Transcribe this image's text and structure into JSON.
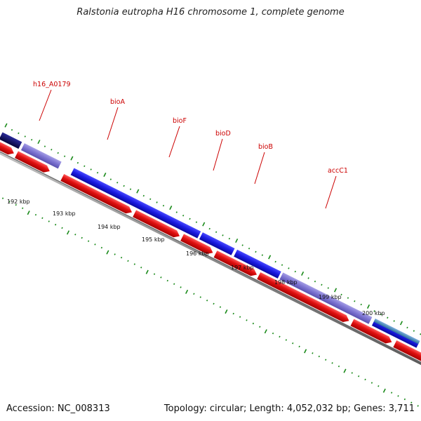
{
  "title": "Ralstonia eutropha H16 chromosome 1, complete genome",
  "footer": {
    "accession": "Accession: NC_008313",
    "stats": "Topology: circular; Length: 4,052,032 bp; Genes: 3,711"
  },
  "scale_labels": [
    "192 kbp",
    "193 kbp",
    "194 kbp",
    "195 kbp",
    "196 kbp",
    "197 kbp",
    "198 kbp",
    "199 kbp",
    "200 kbp"
  ],
  "gene_labels": [
    "h16_A0179",
    "bioA",
    "bioF",
    "bioD",
    "bioB",
    "accC1"
  ],
  "colors": {
    "cds_forward": "#e01010",
    "gene_blue": "#1a1ae0",
    "gene_lavender": "#7b72d0",
    "gene_navy": "#0a0a6e",
    "gene_teal": "#4a8ac0",
    "backbone": "#8a8a8a",
    "tick": "#1a8a1a",
    "label": "#cc0000"
  }
}
